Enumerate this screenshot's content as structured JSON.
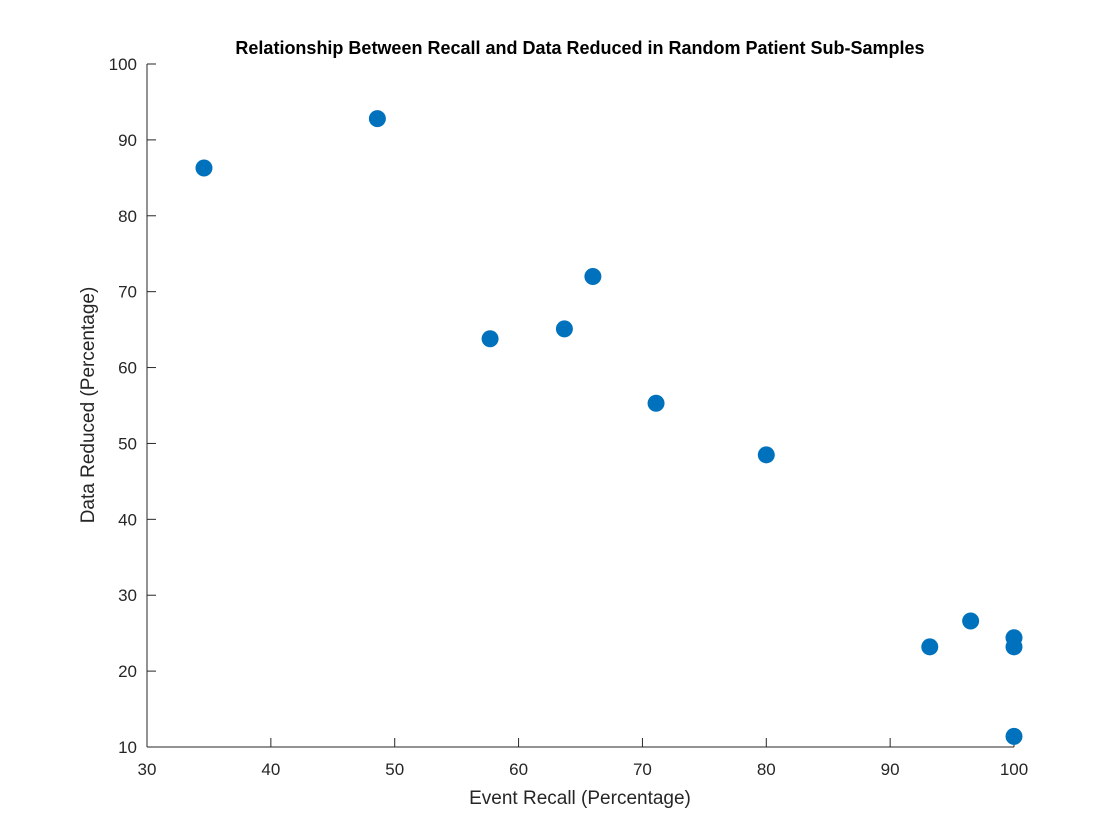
{
  "chart_data": {
    "type": "scatter",
    "title": "Relationship Between Recall and Data Reduced in Random Patient Sub-Samples",
    "xlabel": "Event Recall (Percentage)",
    "ylabel": "Data Reduced (Percentage)",
    "xlim": [
      30,
      100
    ],
    "ylim": [
      10,
      100
    ],
    "xticks": [
      "30",
      "40",
      "50",
      "60",
      "70",
      "80",
      "90",
      "100"
    ],
    "yticks": [
      "10",
      "20",
      "30",
      "40",
      "50",
      "60",
      "70",
      "80",
      "90",
      "100"
    ],
    "grid": false,
    "marker_color": "#0072BD",
    "points": [
      {
        "x": 34.6,
        "y": 86.3
      },
      {
        "x": 48.6,
        "y": 92.8
      },
      {
        "x": 57.7,
        "y": 63.8
      },
      {
        "x": 63.7,
        "y": 65.1
      },
      {
        "x": 66.0,
        "y": 72.0
      },
      {
        "x": 71.1,
        "y": 55.3
      },
      {
        "x": 80.0,
        "y": 48.5
      },
      {
        "x": 93.2,
        "y": 23.2
      },
      {
        "x": 96.5,
        "y": 26.6
      },
      {
        "x": 100.0,
        "y": 24.4
      },
      {
        "x": 100.0,
        "y": 23.2
      },
      {
        "x": 100.0,
        "y": 11.4
      }
    ]
  }
}
